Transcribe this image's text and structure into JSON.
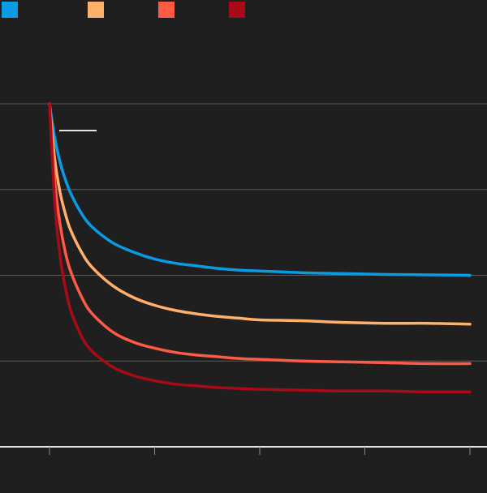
{
  "chart_data": {
    "type": "line",
    "title": "",
    "xlabel": "",
    "ylabel": "",
    "x": [
      0,
      0.25,
      0.5,
      0.75,
      1,
      1.5,
      2,
      3,
      4,
      5,
      6,
      7,
      8,
      9,
      10,
      12,
      14,
      16,
      18,
      20
    ],
    "xlim": [
      0,
      20
    ],
    "ylim": [
      0,
      4
    ],
    "xticks": [
      0,
      5,
      10,
      15,
      20
    ],
    "yticks": [
      1,
      2,
      3,
      4
    ],
    "grid": true,
    "legend_position": "top-left",
    "series": [
      {
        "name": "",
        "color": "#0b9be3",
        "values": [
          4.0,
          3.6,
          3.32,
          3.12,
          2.96,
          2.73,
          2.57,
          2.38,
          2.27,
          2.19,
          2.14,
          2.11,
          2.08,
          2.06,
          2.05,
          2.03,
          2.02,
          2.01,
          2.005,
          2.0
        ]
      },
      {
        "name": "",
        "color": "#ffb06a",
        "values": [
          4.0,
          3.35,
          2.97,
          2.72,
          2.53,
          2.28,
          2.1,
          1.88,
          1.74,
          1.65,
          1.59,
          1.55,
          1.52,
          1.5,
          1.48,
          1.47,
          1.45,
          1.44,
          1.44,
          1.43
        ]
      },
      {
        "name": "",
        "color": "#ff5a45",
        "values": [
          4.0,
          3.1,
          2.6,
          2.27,
          2.05,
          1.76,
          1.56,
          1.34,
          1.22,
          1.15,
          1.1,
          1.07,
          1.05,
          1.03,
          1.02,
          1.0,
          0.99,
          0.98,
          0.97,
          0.97
        ]
      },
      {
        "name": "",
        "color": "#a60b16",
        "values": [
          4.0,
          2.85,
          2.23,
          1.86,
          1.6,
          1.3,
          1.12,
          0.93,
          0.83,
          0.77,
          0.73,
          0.71,
          0.69,
          0.68,
          0.67,
          0.66,
          0.65,
          0.65,
          0.64,
          0.64
        ]
      }
    ]
  },
  "colors": {
    "background": "#1f1f1f",
    "grid": "#5a5a5a",
    "axis": "#e6e6e6",
    "annotation": "#e6e6e6"
  }
}
